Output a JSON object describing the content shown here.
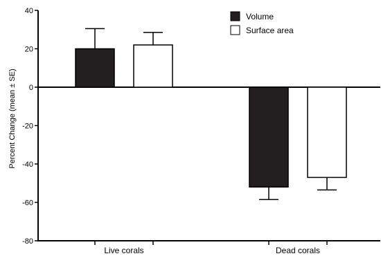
{
  "chart_data": {
    "type": "bar",
    "categories": [
      "Live corals",
      "Dead corals"
    ],
    "series": [
      {
        "name": "Volume",
        "color": "#231f20",
        "values": [
          20,
          -52
        ],
        "errors": [
          10.5,
          6.5
        ]
      },
      {
        "name": "Surface area",
        "color": "#ffffff",
        "values": [
          22,
          -47
        ],
        "errors": [
          6.5,
          6.5
        ]
      }
    ],
    "ylabel": "Percent Change (mean ± SE)",
    "xlabel": "",
    "title": "",
    "ylim": [
      -80,
      40
    ],
    "yticks": [
      40,
      20,
      0,
      -20,
      -40,
      -60,
      -80
    ],
    "legend_position": "top-right",
    "grid": false
  }
}
